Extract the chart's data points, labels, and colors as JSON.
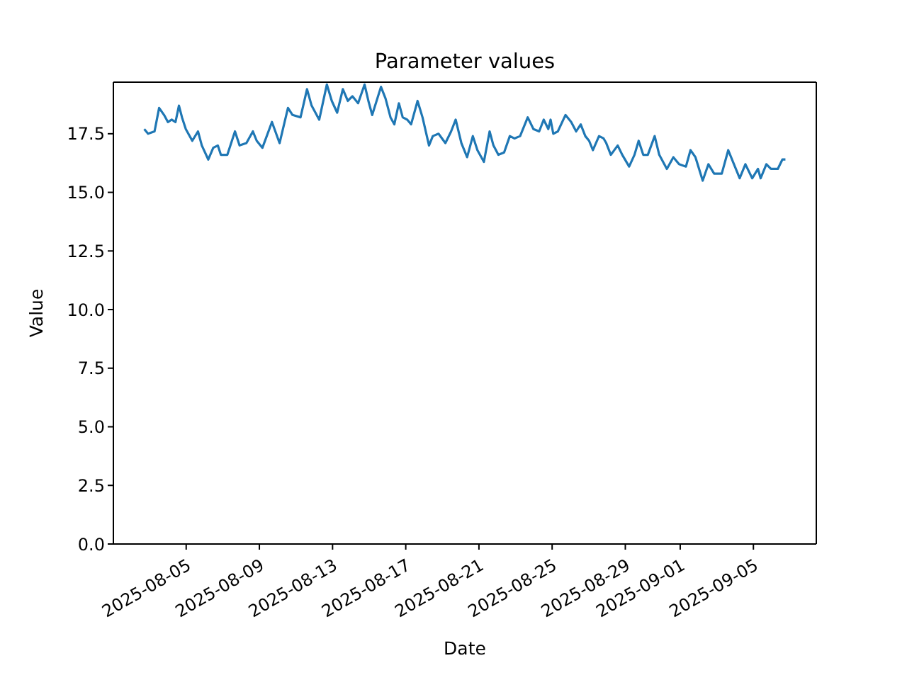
{
  "chart_data": {
    "type": "line",
    "title": "Parameter values",
    "xlabel": "Date",
    "ylabel": "Value",
    "x": [
      "2025-08-02T17:00",
      "2025-08-02T22:00",
      "2025-08-03T06:30",
      "2025-08-03T12:30",
      "2025-08-03T19:00",
      "2025-08-04T00:00",
      "2025-08-04T05:00",
      "2025-08-04T10:00",
      "2025-08-04T14:30",
      "2025-08-04T18:30",
      "2025-08-04T23:30",
      "2025-08-05T08:00",
      "2025-08-05T15:30",
      "2025-08-05T20:30",
      "2025-08-06T05:00",
      "2025-08-06T11:30",
      "2025-08-06T17:30",
      "2025-08-06T21:30",
      "2025-08-07T06:00",
      "2025-08-07T16:00",
      "2025-08-07T22:00",
      "2025-08-08T07:00",
      "2025-08-08T15:30",
      "2025-08-08T20:30",
      "2025-08-09T04:00",
      "2025-08-09T16:30",
      "2025-08-10T02:30",
      "2025-08-10T13:30",
      "2025-08-10T19:30",
      "2025-08-11T06:00",
      "2025-08-11T14:30",
      "2025-08-11T20:30",
      "2025-08-12T06:30",
      "2025-08-12T16:30",
      "2025-08-12T23:00",
      "2025-08-13T06:00",
      "2025-08-13T13:30",
      "2025-08-13T20:00",
      "2025-08-14T02:00",
      "2025-08-14T09:30",
      "2025-08-14T18:00",
      "2025-08-14T23:00",
      "2025-08-15T04:00",
      "2025-08-15T15:30",
      "2025-08-15T21:30",
      "2025-08-16T04:00",
      "2025-08-16T09:00",
      "2025-08-16T15:00",
      "2025-08-16T20:00",
      "2025-08-17T02:00",
      "2025-08-17T07:00",
      "2025-08-17T15:30",
      "2025-08-17T22:00",
      "2025-08-18T06:30",
      "2025-08-18T11:30",
      "2025-08-18T19:00",
      "2025-08-19T04:00",
      "2025-08-19T11:30",
      "2025-08-19T17:30",
      "2025-08-20T01:00",
      "2025-08-20T08:30",
      "2025-08-20T16:00",
      "2025-08-20T22:00",
      "2025-08-21T06:30",
      "2025-08-21T14:00",
      "2025-08-21T19:00",
      "2025-08-22T01:30",
      "2025-08-22T09:00",
      "2025-08-22T16:30",
      "2025-08-22T22:30",
      "2025-08-23T06:00",
      "2025-08-23T16:00",
      "2025-08-23T23:30",
      "2025-08-24T07:00",
      "2025-08-24T13:00",
      "2025-08-24T19:00",
      "2025-08-24T22:00",
      "2025-08-25T01:30",
      "2025-08-25T07:30",
      "2025-08-25T17:30",
      "2025-08-26T01:00",
      "2025-08-26T07:30",
      "2025-08-26T13:30",
      "2025-08-26T19:30",
      "2025-08-27T00:30",
      "2025-08-27T05:30",
      "2025-08-27T13:30",
      "2025-08-27T19:30",
      "2025-08-27T23:00",
      "2025-08-28T05:00",
      "2025-08-28T14:00",
      "2025-08-28T20:00",
      "2025-08-29T05:00",
      "2025-08-29T12:00",
      "2025-08-29T17:30",
      "2025-08-29T23:30",
      "2025-08-30T05:30",
      "2025-08-30T14:30",
      "2025-08-30T20:30",
      "2025-08-31T06:30",
      "2025-08-31T15:00",
      "2025-08-31T22:30",
      "2025-09-01T07:30",
      "2025-09-01T13:30",
      "2025-09-01T20:00",
      "2025-09-02T05:30",
      "2025-09-02T13:00",
      "2025-09-02T20:30",
      "2025-09-03T06:30",
      "2025-09-03T15:00",
      "2025-09-03T22:30",
      "2025-09-04T06:00",
      "2025-09-04T13:30",
      "2025-09-04T22:30",
      "2025-09-05T06:00",
      "2025-09-05T09:30",
      "2025-09-05T17:00",
      "2025-09-05T23:00",
      "2025-09-06T08:00",
      "2025-09-06T14:00",
      "2025-09-06T18:00"
    ],
    "series": [
      {
        "color": "#1f77b4",
        "values": [
          17.7,
          17.5,
          17.6,
          18.6,
          18.3,
          18.0,
          18.1,
          18.0,
          18.7,
          18.2,
          17.7,
          17.2,
          17.6,
          17.0,
          16.4,
          16.9,
          17.0,
          16.6,
          16.6,
          17.6,
          17.0,
          17.1,
          17.6,
          17.2,
          16.9,
          18.0,
          17.1,
          18.6,
          18.3,
          18.2,
          19.4,
          18.7,
          18.1,
          19.6,
          18.9,
          18.4,
          19.4,
          18.9,
          19.1,
          18.8,
          19.6,
          18.9,
          18.3,
          19.5,
          19.0,
          18.2,
          17.9,
          18.8,
          18.2,
          18.1,
          17.9,
          18.9,
          18.2,
          17.0,
          17.4,
          17.5,
          17.1,
          17.6,
          18.1,
          17.1,
          16.5,
          17.4,
          16.8,
          16.3,
          17.6,
          17.0,
          16.6,
          16.7,
          17.4,
          17.3,
          17.4,
          18.2,
          17.7,
          17.6,
          18.1,
          17.7,
          18.1,
          17.5,
          17.6,
          18.3,
          18.0,
          17.6,
          17.9,
          17.4,
          17.2,
          16.8,
          17.4,
          17.3,
          17.1,
          16.6,
          17.0,
          16.6,
          16.1,
          16.6,
          17.2,
          16.6,
          16.6,
          17.4,
          16.6,
          16.0,
          16.5,
          16.2,
          16.1,
          16.8,
          16.5,
          15.5,
          16.2,
          15.8,
          15.8,
          16.8,
          16.2,
          15.6,
          16.2,
          15.6,
          16.0,
          15.6,
          16.2,
          16.0,
          16.0,
          16.4,
          16.4
        ]
      }
    ],
    "xlim": [
      "2025-08-01T00:30",
      "2025-09-08T10:30"
    ],
    "xticks": [
      "2025-08-05",
      "2025-08-09",
      "2025-08-13",
      "2025-08-17",
      "2025-08-21",
      "2025-08-25",
      "2025-08-29",
      "2025-09-01",
      "2025-09-05"
    ],
    "ylim": [
      0,
      19.7
    ],
    "yticks": [
      {
        "value": 0,
        "label": "0.0"
      },
      2.5,
      {
        "value": 5,
        "label": "5.0"
      },
      7.5,
      {
        "value": 10,
        "label": "10.0"
      },
      12.5,
      {
        "value": 15,
        "label": "15.0"
      },
      17.5
    ],
    "grid": false,
    "legend": false,
    "marker": "none",
    "line_style": "solid"
  }
}
